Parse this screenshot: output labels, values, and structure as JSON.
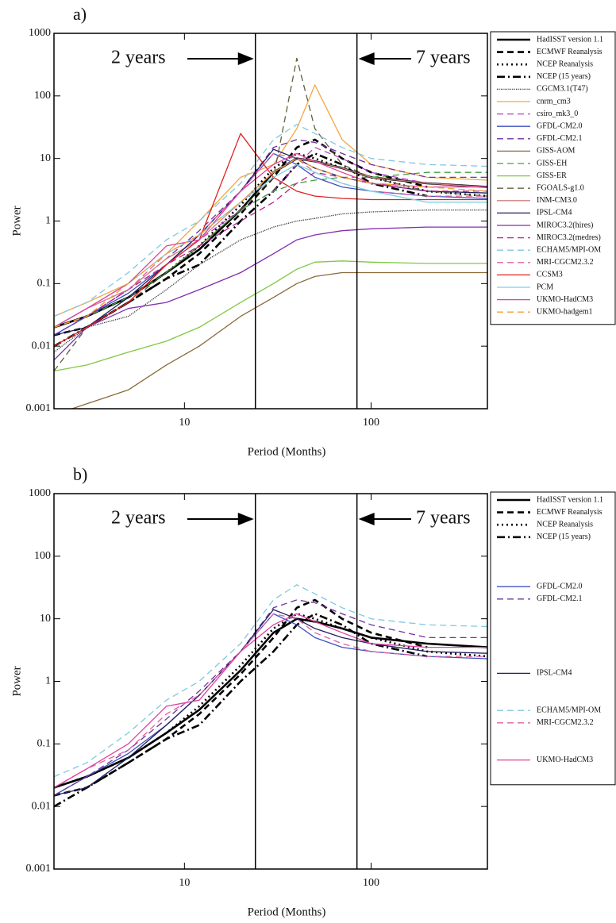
{
  "chart_data": [
    {
      "type": "line",
      "title": "a)",
      "x_label": "Period (Months)",
      "y_label": "Power",
      "xscale": "log",
      "yscale": "log",
      "xlim": [
        2,
        420
      ],
      "ylim": [
        0.001,
        1000
      ],
      "xticks": [
        10,
        100
      ],
      "yticks": [
        0.001,
        0.01,
        0.1,
        1,
        10,
        100,
        1000
      ],
      "vlines": [
        24,
        84
      ],
      "annotations": [
        "2 years",
        "7 years"
      ],
      "legend": "outside-right",
      "x": [
        2,
        3,
        5,
        8,
        12,
        20,
        30,
        40,
        50,
        70,
        100,
        200,
        420
      ],
      "series": [
        {
          "name": "HadISST version 1.1",
          "color": "#000000",
          "style": "solid",
          "values": [
            0.02,
            0.03,
            0.06,
            0.15,
            0.35,
            1.5,
            6,
            10,
            9,
            7,
            5,
            4,
            3.5
          ]
        },
        {
          "name": "ECMWF Reanalysis",
          "color": "#000000",
          "style": "dashed",
          "values": [
            0.015,
            0.02,
            0.05,
            0.12,
            0.3,
            1.3,
            5,
            15,
            20,
            10,
            6,
            3.5,
            null
          ]
        },
        {
          "name": "NCEP Reanalysis",
          "color": "#000000",
          "style": "dotted",
          "values": [
            0.02,
            0.03,
            0.06,
            0.15,
            0.4,
            1.8,
            7,
            12,
            10,
            7,
            5,
            3,
            2.5
          ]
        },
        {
          "name": "NCEP (15 years)",
          "color": "#000000",
          "style": "dashdot",
          "values": [
            0.01,
            0.02,
            0.05,
            0.12,
            0.2,
            1,
            3,
            8,
            12,
            8,
            4,
            2.5,
            null
          ]
        },
        {
          "name": "CGCM3.1(T47)",
          "color": "#333333",
          "style": "finedot",
          "values": [
            0.008,
            0.02,
            0.03,
            0.08,
            0.2,
            0.5,
            0.8,
            1,
            1.1,
            1.3,
            1.4,
            1.5,
            1.5
          ]
        },
        {
          "name": "cnrm_cm3",
          "color": "#f4a640",
          "style": "solid",
          "values": [
            0.03,
            0.05,
            0.1,
            0.3,
            1,
            5,
            8,
            30,
            150,
            20,
            8,
            5,
            4.5
          ]
        },
        {
          "name": "csiro_mk3_0",
          "color": "#b040c0",
          "style": "dashed",
          "values": [
            0.02,
            0.03,
            0.08,
            0.2,
            0.5,
            1.5,
            3,
            8,
            15,
            10,
            6,
            4,
            3.5
          ]
        },
        {
          "name": "GFDL-CM2.0",
          "color": "#4050c0",
          "style": "solid",
          "values": [
            0.015,
            0.03,
            0.07,
            0.2,
            0.6,
            3,
            12,
            8,
            5,
            3.5,
            3,
            2.5,
            2.3
          ]
        },
        {
          "name": "GFDL-CM2.1",
          "color": "#7030a0",
          "style": "dashed",
          "values": [
            0.015,
            0.03,
            0.08,
            0.25,
            0.7,
            3,
            15,
            20,
            18,
            12,
            8,
            5,
            5
          ]
        },
        {
          "name": "GISS-AOM",
          "color": "#8b6a3a",
          "style": "solid",
          "values": [
            0.0008,
            0.0012,
            0.002,
            0.005,
            0.01,
            0.03,
            0.06,
            0.1,
            0.13,
            0.15,
            0.15,
            0.15,
            0.15
          ]
        },
        {
          "name": "GISS-EH",
          "color": "#40a040",
          "style": "dashed",
          "values": [
            0.02,
            0.03,
            0.06,
            0.15,
            0.4,
            1.5,
            3,
            4,
            4.5,
            5,
            5,
            6,
            6
          ]
        },
        {
          "name": "GISS-ER",
          "color": "#80c840",
          "style": "solid",
          "values": [
            0.004,
            0.005,
            0.008,
            0.012,
            0.02,
            0.05,
            0.1,
            0.17,
            0.22,
            0.23,
            0.22,
            0.21,
            0.21
          ]
        },
        {
          "name": "FGOALS-g1.0",
          "color": "#606040",
          "style": "dashed",
          "values": [
            0.004,
            0.02,
            0.05,
            0.15,
            0.4,
            1.5,
            5,
            400,
            30,
            8,
            5,
            3,
            2.5
          ]
        },
        {
          "name": "INM-CM3.0",
          "color": "#d08080",
          "style": "solid",
          "values": [
            0.02,
            0.04,
            0.08,
            0.25,
            0.5,
            2,
            6,
            10,
            9,
            7,
            5,
            4,
            3.5
          ]
        },
        {
          "name": "IPSL-CM4",
          "color": "#202060",
          "style": "solid",
          "values": [
            0.015,
            0.02,
            0.06,
            0.2,
            0.6,
            3,
            14,
            10,
            7,
            5,
            4,
            3,
            2.8
          ]
        },
        {
          "name": "MIROC3.2(hires)",
          "color": "#8030b0",
          "style": "solid",
          "values": [
            0.006,
            0.02,
            0.04,
            0.05,
            0.08,
            0.15,
            0.3,
            0.5,
            0.6,
            0.7,
            0.75,
            0.8,
            0.8
          ]
        },
        {
          "name": "MIROC3.2(medres)",
          "color": "#c02090",
          "style": "dashed",
          "values": [
            0.02,
            0.03,
            0.08,
            0.2,
            0.4,
            1,
            2,
            4,
            6,
            5,
            4,
            3,
            3
          ]
        },
        {
          "name": "ECHAM5/MPI-OM",
          "color": "#80c8e0",
          "style": "dashed",
          "values": [
            0.03,
            0.05,
            0.15,
            0.5,
            1,
            4,
            20,
            35,
            25,
            15,
            10,
            8,
            7.5
          ]
        },
        {
          "name": "MRI-CGCM2.3.2",
          "color": "#e060a0",
          "style": "dashed",
          "values": [
            0.02,
            0.04,
            0.08,
            0.3,
            0.6,
            3,
            12,
            10,
            6,
            4,
            3,
            2.5,
            2.5
          ]
        },
        {
          "name": "CCSM3",
          "color": "#e02020",
          "style": "solid",
          "values": [
            0.01,
            0.02,
            0.05,
            0.2,
            0.5,
            25,
            5,
            3,
            2.5,
            2.3,
            2.2,
            2.2,
            2.2
          ]
        },
        {
          "name": "PCM",
          "color": "#80d0e0",
          "style": "solid",
          "values": [
            0.02,
            0.04,
            0.1,
            0.3,
            0.6,
            2,
            5,
            8,
            6,
            4,
            3,
            2,
            2
          ]
        },
        {
          "name": "UKMO-HadCM3",
          "color": "#e040a0",
          "style": "solid",
          "values": [
            0.02,
            0.04,
            0.1,
            0.4,
            0.5,
            3,
            8,
            12,
            9,
            6,
            4,
            3.5,
            3.5
          ]
        },
        {
          "name": "UKMO-hadgem1",
          "color": "#f0a030",
          "style": "dashed",
          "values": [
            0.02,
            0.03,
            0.1,
            0.3,
            0.6,
            2,
            6,
            10,
            7,
            5,
            4,
            3.5,
            3
          ]
        }
      ]
    },
    {
      "type": "line",
      "title": "b)",
      "x_label": "Period (Months)",
      "y_label": "Power",
      "xscale": "log",
      "yscale": "log",
      "xlim": [
        2,
        420
      ],
      "ylim": [
        0.001,
        1000
      ],
      "xticks": [
        10,
        100
      ],
      "yticks": [
        0.001,
        0.01,
        0.1,
        1,
        10,
        100,
        1000
      ],
      "vlines": [
        24,
        84
      ],
      "annotations": [
        "2 years",
        "7 years"
      ],
      "legend": "outside-right",
      "x": [
        2,
        3,
        5,
        8,
        12,
        20,
        30,
        40,
        50,
        70,
        100,
        200,
        420
      ],
      "series": [
        {
          "name": "HadISST version 1.1",
          "color": "#000000",
          "style": "solid",
          "values": [
            0.02,
            0.03,
            0.06,
            0.15,
            0.35,
            1.5,
            6,
            10,
            9,
            7,
            5,
            4,
            3.5
          ]
        },
        {
          "name": "ECMWF Reanalysis",
          "color": "#000000",
          "style": "dashed",
          "values": [
            0.015,
            0.02,
            0.05,
            0.12,
            0.3,
            1.3,
            5,
            15,
            20,
            10,
            6,
            3.5,
            null
          ]
        },
        {
          "name": "NCEP Reanalysis",
          "color": "#000000",
          "style": "dotted",
          "values": [
            0.02,
            0.03,
            0.06,
            0.15,
            0.4,
            1.8,
            7,
            12,
            10,
            7,
            5,
            3,
            2.5
          ]
        },
        {
          "name": "NCEP (15 years)",
          "color": "#000000",
          "style": "dashdot",
          "values": [
            0.01,
            0.02,
            0.05,
            0.12,
            0.2,
            1,
            3,
            8,
            12,
            8,
            4,
            2.5,
            null
          ]
        },
        {
          "name": "GFDL-CM2.0",
          "color": "#4050c0",
          "style": "solid",
          "values": [
            0.015,
            0.03,
            0.07,
            0.2,
            0.6,
            3,
            12,
            8,
            5,
            3.5,
            3,
            2.5,
            2.3
          ]
        },
        {
          "name": "GFDL-CM2.1",
          "color": "#7030a0",
          "style": "dashed",
          "values": [
            0.015,
            0.03,
            0.08,
            0.25,
            0.7,
            3,
            15,
            20,
            18,
            12,
            8,
            5,
            5
          ]
        },
        {
          "name": "IPSL-CM4",
          "color": "#202060",
          "style": "solid",
          "values": [
            0.015,
            0.02,
            0.06,
            0.2,
            0.6,
            3,
            14,
            10,
            7,
            5,
            4,
            3,
            2.8
          ]
        },
        {
          "name": "ECHAM5/MPI-OM",
          "color": "#80c8e0",
          "style": "dashed",
          "values": [
            0.03,
            0.05,
            0.15,
            0.5,
            1,
            4,
            20,
            35,
            25,
            15,
            10,
            8,
            7.5
          ]
        },
        {
          "name": "MRI-CGCM2.3.2",
          "color": "#e060a0",
          "style": "dashed",
          "values": [
            0.02,
            0.04,
            0.08,
            0.3,
            0.6,
            3,
            12,
            10,
            6,
            4,
            3,
            2.5,
            2.5
          ]
        },
        {
          "name": "UKMO-HadCM3",
          "color": "#e040a0",
          "style": "solid",
          "values": [
            0.02,
            0.04,
            0.1,
            0.4,
            0.5,
            3,
            8,
            12,
            9,
            6,
            4,
            3.5,
            3.5
          ]
        }
      ]
    }
  ]
}
